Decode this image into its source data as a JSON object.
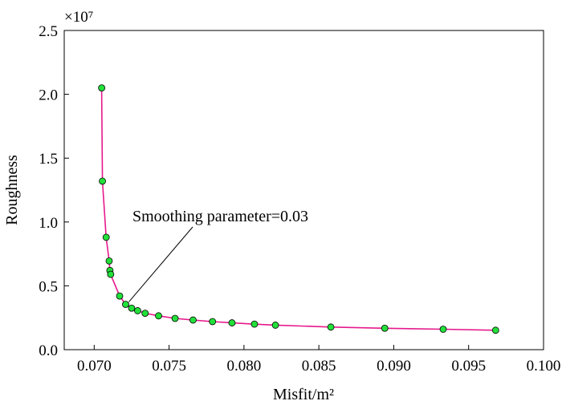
{
  "chart_data": {
    "type": "line",
    "title": "",
    "xlabel": "Misfit/m²",
    "ylabel": "Roughness",
    "y_multiplier_label": "×10⁷",
    "xlim": [
      0.068,
      0.1
    ],
    "ylim": [
      0,
      2.5
    ],
    "x_ticks": [
      "0.070",
      "0.075",
      "0.080",
      "0.085",
      "0.090",
      "0.095",
      "0.100"
    ],
    "y_ticks": [
      "0.0",
      "0.5",
      "1.0",
      "1.5",
      "2.0",
      "2.5"
    ],
    "grid": false,
    "line_color": "#e6198c",
    "marker_color": "#22e03a",
    "series": [
      {
        "x": [
          0.0705,
          0.07055,
          0.0708,
          0.071,
          0.07105,
          0.0711,
          0.0717,
          0.0721,
          0.0725,
          0.0729,
          0.0734,
          0.0743,
          0.0754,
          0.0766,
          0.0779,
          0.0792,
          0.0807,
          0.0821,
          0.0858,
          0.0894,
          0.0933,
          0.0968
        ],
        "y": [
          2.05,
          1.32,
          0.88,
          0.695,
          0.62,
          0.59,
          0.42,
          0.355,
          0.325,
          0.305,
          0.285,
          0.265,
          0.245,
          0.232,
          0.22,
          0.21,
          0.2,
          0.192,
          0.177,
          0.168,
          0.16,
          0.152
        ]
      }
    ],
    "annotation": {
      "text": "Smoothing parameter=0.03",
      "x": 0.0721,
      "y": 0.355
    }
  }
}
